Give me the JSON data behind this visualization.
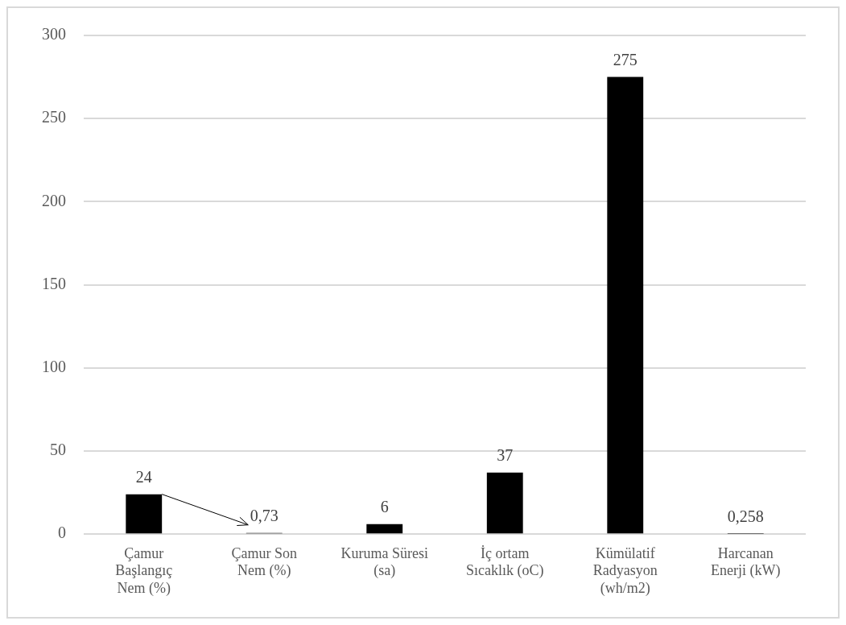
{
  "chart_data": {
    "type": "bar",
    "categories": [
      "Çamur Başlangıç Nem (%)",
      "Çamur Son Nem (%)",
      "Kuruma Süresi (sa)",
      "İç ortam Sıcaklık (oC)",
      "Kümülatif Radyasyon (wh/m2)",
      "Harcanan Enerji (kW)"
    ],
    "values": [
      24,
      0.73,
      6,
      37,
      275,
      0.258
    ],
    "color": "#000000",
    "value_labels": [
      "24",
      "0,73",
      "6",
      "37",
      "275",
      "0,258"
    ],
    "ylim": [
      0,
      300
    ],
    "yticks": [
      0,
      50,
      100,
      150,
      200,
      250,
      300
    ],
    "grid": "y",
    "legend": false
  }
}
